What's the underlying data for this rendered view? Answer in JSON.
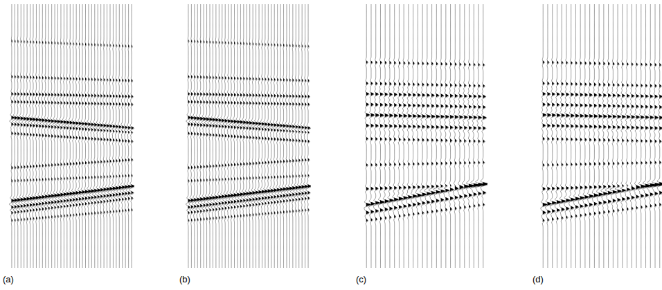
{
  "chart_data": [
    {
      "type": "wiggle",
      "title": "(a)",
      "traces": 40,
      "color": "#000000",
      "ylim": [
        0,
        100
      ],
      "tick_labels": false,
      "events": [
        {
          "t0": 14,
          "t1": 16,
          "amplitude": 0.25
        },
        {
          "t0": 27.5,
          "t1": 29,
          "amplitude": 0.35
        },
        {
          "t0": 34,
          "t1": 35,
          "amplitude": 0.5
        },
        {
          "t0": 37,
          "t1": 38,
          "amplitude": 0.45
        },
        {
          "t0": 43,
          "t1": 47,
          "amplitude": 0.9
        },
        {
          "t0": 45.5,
          "t1": 48.5,
          "amplitude": 0.6
        },
        {
          "t0": 49,
          "t1": 52,
          "amplitude": 0.45
        },
        {
          "t0": 62,
          "t1": 59,
          "amplitude": 0.4
        },
        {
          "t0": 67,
          "t1": 65,
          "amplitude": 0.3
        },
        {
          "t0": 74.5,
          "t1": 69,
          "amplitude": 1.0
        },
        {
          "t0": 77,
          "t1": 71.5,
          "amplitude": 0.7
        },
        {
          "t0": 79,
          "t1": 73.5,
          "amplitude": 0.5
        },
        {
          "t0": 82,
          "t1": 78,
          "amplitude": 0.3
        }
      ]
    },
    {
      "type": "wiggle",
      "title": "(b)",
      "traces": 40,
      "color": "#000000",
      "ylim": [
        0,
        100
      ],
      "tick_labels": false,
      "events": [
        {
          "t0": 14,
          "t1": 16,
          "amplitude": 0.25
        },
        {
          "t0": 27.5,
          "t1": 29,
          "amplitude": 0.35
        },
        {
          "t0": 34,
          "t1": 35,
          "amplitude": 0.5
        },
        {
          "t0": 37,
          "t1": 38,
          "amplitude": 0.45
        },
        {
          "t0": 43,
          "t1": 47,
          "amplitude": 0.9
        },
        {
          "t0": 45.5,
          "t1": 48.5,
          "amplitude": 0.6
        },
        {
          "t0": 49,
          "t1": 52,
          "amplitude": 0.45
        },
        {
          "t0": 62,
          "t1": 59,
          "amplitude": 0.4
        },
        {
          "t0": 67,
          "t1": 65,
          "amplitude": 0.3
        },
        {
          "t0": 74.5,
          "t1": 69,
          "amplitude": 1.0
        },
        {
          "t0": 77,
          "t1": 71.5,
          "amplitude": 0.7
        },
        {
          "t0": 79,
          "t1": 73.5,
          "amplitude": 0.5
        },
        {
          "t0": 82,
          "t1": 78,
          "amplitude": 0.3
        }
      ]
    },
    {
      "type": "wiggle",
      "title": "(c)",
      "traces": 26,
      "color": "#000000",
      "ylim": [
        0,
        100
      ],
      "tick_labels": false,
      "events": [
        {
          "t0": 22,
          "t1": 23,
          "amplitude": 0.3
        },
        {
          "t0": 30,
          "t1": 31,
          "amplitude": 0.35
        },
        {
          "t0": 34,
          "t1": 35,
          "amplitude": 0.55
        },
        {
          "t0": 38,
          "t1": 39,
          "amplitude": 0.5
        },
        {
          "t0": 42,
          "t1": 43,
          "amplitude": 0.7
        },
        {
          "t0": 46,
          "t1": 47,
          "amplitude": 0.55
        },
        {
          "t0": 51,
          "t1": 52,
          "amplitude": 0.35
        },
        {
          "t0": 61,
          "t1": 60,
          "amplitude": 0.3
        },
        {
          "t0": 70,
          "t1": 68.5,
          "amplitude": 0.5
        },
        {
          "t0": 76,
          "t1": 68,
          "amplitude": 0.9
        },
        {
          "t0": 79,
          "t1": 71.5,
          "amplitude": 0.6
        },
        {
          "t0": 82,
          "t1": 76,
          "amplitude": 0.3
        }
      ]
    },
    {
      "type": "wiggle",
      "title": "(d)",
      "traces": 26,
      "color": "#000000",
      "ylim": [
        0,
        100
      ],
      "tick_labels": false,
      "events": [
        {
          "t0": 22,
          "t1": 23,
          "amplitude": 0.3
        },
        {
          "t0": 30,
          "t1": 31,
          "amplitude": 0.35
        },
        {
          "t0": 34,
          "t1": 35,
          "amplitude": 0.55
        },
        {
          "t0": 38,
          "t1": 39,
          "amplitude": 0.5
        },
        {
          "t0": 42,
          "t1": 43,
          "amplitude": 0.7
        },
        {
          "t0": 46,
          "t1": 47,
          "amplitude": 0.55
        },
        {
          "t0": 51,
          "t1": 52,
          "amplitude": 0.35
        },
        {
          "t0": 61,
          "t1": 60,
          "amplitude": 0.3
        },
        {
          "t0": 70,
          "t1": 68.5,
          "amplitude": 0.5
        },
        {
          "t0": 76,
          "t1": 68,
          "amplitude": 0.9
        },
        {
          "t0": 79,
          "t1": 71.5,
          "amplitude": 0.6
        },
        {
          "t0": 82,
          "t1": 76,
          "amplitude": 0.3
        }
      ]
    }
  ]
}
